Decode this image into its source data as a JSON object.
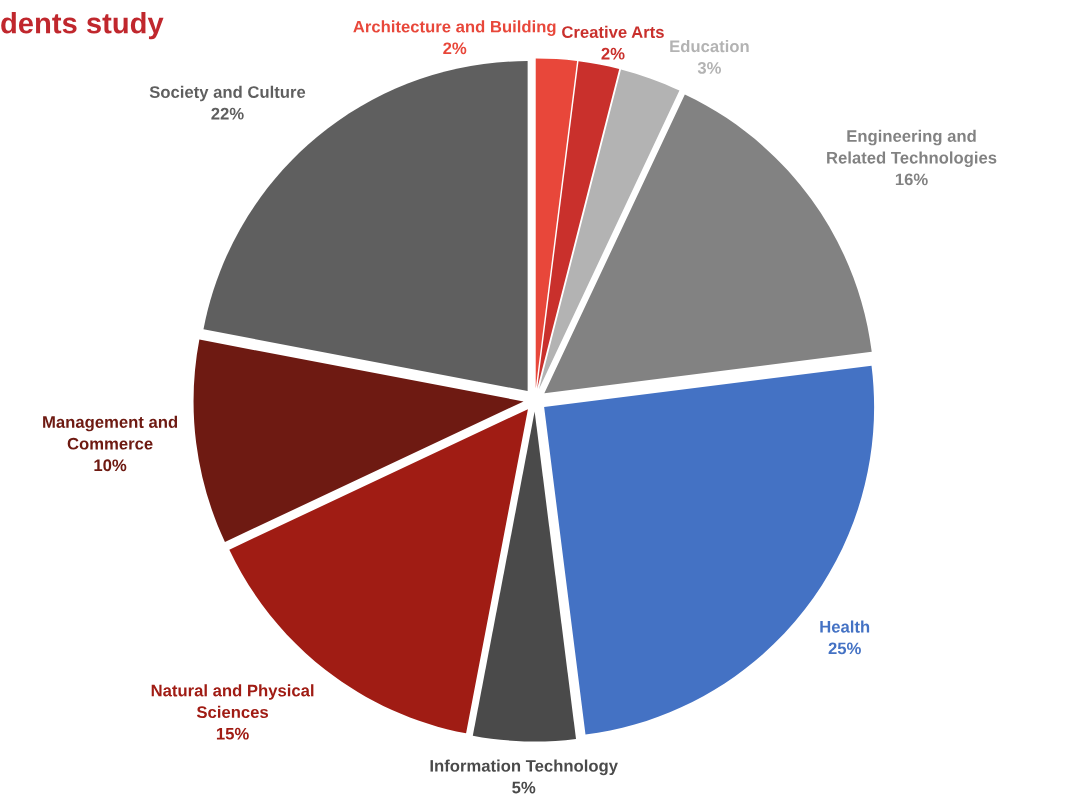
{
  "chart_data": {
    "type": "pie",
    "title": "dents study",
    "categories": [
      "Architecture and Building",
      "Creative Arts",
      "Education",
      "Engineering and Related Technologies",
      "Health",
      "Information Technology",
      "Natural and Physical Sciences",
      "Management and Commerce",
      "Society and Culture"
    ],
    "values": [
      2,
      2,
      3,
      16,
      25,
      5,
      15,
      10,
      22
    ],
    "value_labels": [
      "2%",
      "2%",
      "3%",
      "16%",
      "25%",
      "5%",
      "15%",
      "10%",
      "22%"
    ],
    "colors": [
      "#e8473a",
      "#c9302c",
      "#b3b3b3",
      "#828282",
      "#4472c4",
      "#4a4a4a",
      "#a01c14",
      "#6e1a12",
      "#5f5f5f"
    ],
    "legend": false
  }
}
